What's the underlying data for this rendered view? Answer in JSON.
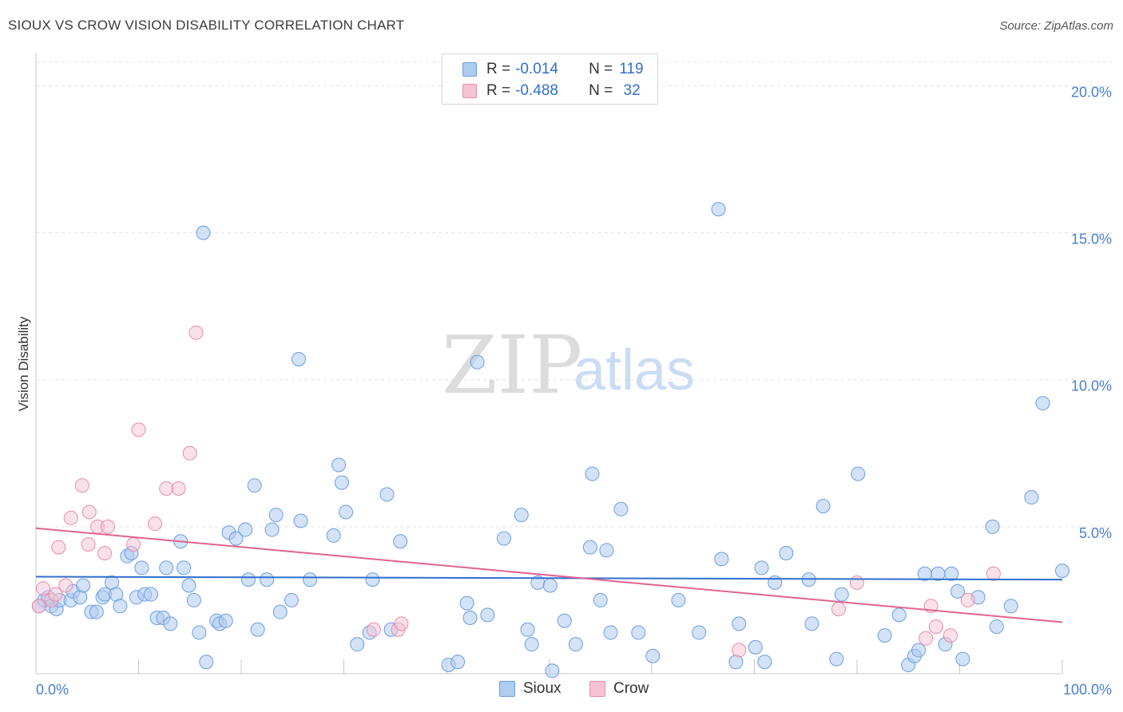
{
  "title": "SIOUX VS CROW VISION DISABILITY CORRELATION CHART",
  "source": "Source: ZipAtlas.com",
  "watermark": {
    "zip": "ZIP",
    "atlas": "atlas"
  },
  "legend": {
    "rows": [
      {
        "r_label": "R =",
        "r_value": "-0.014",
        "n_label": "N =",
        "n_value": "119"
      },
      {
        "r_label": "R =",
        "r_value": "-0.488",
        "n_label": "N =",
        "n_value": " 32"
      }
    ]
  },
  "bottom_legend": {
    "sioux": "Sioux",
    "crow": "Crow"
  },
  "colors": {
    "sioux_fill": "#aecbf0",
    "sioux_stroke": "#6a9ee0",
    "sioux_line": "#2f6fce",
    "crow_fill": "#f6c3d4",
    "crow_stroke": "#e98aab",
    "crow_line": "#e3628f",
    "grid": "#e3e3e3",
    "tick_text": "#4a7fd1"
  },
  "chart_data": {
    "type": "scatter",
    "title": "SIOUX VS CROW VISION DISABILITY CORRELATION CHART",
    "xlabel": "",
    "ylabel": "Vision Disability",
    "xlim": [
      0,
      100
    ],
    "ylim": [
      0,
      20.8
    ],
    "x_tick_labels": [
      "0.0%",
      "100.0%"
    ],
    "y_ticks": [
      5,
      10,
      15,
      20
    ],
    "y_tick_labels": [
      "5.0%",
      "10.0%",
      "15.0%",
      "20.0%"
    ],
    "grid": "horizontal dashed",
    "series": [
      {
        "name": "Sioux",
        "trend": {
          "y_at_x0": 3.3,
          "y_at_x100": 3.2
        },
        "points": [
          [
            0.3,
            2.3
          ],
          [
            0.8,
            2.5
          ],
          [
            1.2,
            2.6
          ],
          [
            1.5,
            2.3
          ],
          [
            2.0,
            2.2
          ],
          [
            2.3,
            2.5
          ],
          [
            3.4,
            2.5
          ],
          [
            3.6,
            2.8
          ],
          [
            4.3,
            2.6
          ],
          [
            4.6,
            3.0
          ],
          [
            5.4,
            2.1
          ],
          [
            5.9,
            2.1
          ],
          [
            6.5,
            2.6
          ],
          [
            6.7,
            2.7
          ],
          [
            7.4,
            3.1
          ],
          [
            7.8,
            2.7
          ],
          [
            8.2,
            2.3
          ],
          [
            8.9,
            4.0
          ],
          [
            9.3,
            4.1
          ],
          [
            9.8,
            2.6
          ],
          [
            10.3,
            3.6
          ],
          [
            10.6,
            2.7
          ],
          [
            11.2,
            2.7
          ],
          [
            11.8,
            1.9
          ],
          [
            12.4,
            1.9
          ],
          [
            12.7,
            3.6
          ],
          [
            13.1,
            1.7
          ],
          [
            14.1,
            4.5
          ],
          [
            14.4,
            3.6
          ],
          [
            14.9,
            3.0
          ],
          [
            15.4,
            2.5
          ],
          [
            15.9,
            1.4
          ],
          [
            16.3,
            15.0
          ],
          [
            16.6,
            0.4
          ],
          [
            17.6,
            1.8
          ],
          [
            17.9,
            1.7
          ],
          [
            18.5,
            1.8
          ],
          [
            18.8,
            4.8
          ],
          [
            19.5,
            4.6
          ],
          [
            20.4,
            4.9
          ],
          [
            20.7,
            3.2
          ],
          [
            21.3,
            6.4
          ],
          [
            21.6,
            1.5
          ],
          [
            22.5,
            3.2
          ],
          [
            23.0,
            4.9
          ],
          [
            23.4,
            5.4
          ],
          [
            23.8,
            2.1
          ],
          [
            24.9,
            2.5
          ],
          [
            25.6,
            10.7
          ],
          [
            25.8,
            5.2
          ],
          [
            26.7,
            3.2
          ],
          [
            29.0,
            4.7
          ],
          [
            29.5,
            7.1
          ],
          [
            29.8,
            6.5
          ],
          [
            30.2,
            5.5
          ],
          [
            31.3,
            1.0
          ],
          [
            32.5,
            1.4
          ],
          [
            32.8,
            3.2
          ],
          [
            34.2,
            6.1
          ],
          [
            34.6,
            1.5
          ],
          [
            35.5,
            4.5
          ],
          [
            40.2,
            0.3
          ],
          [
            41.1,
            0.4
          ],
          [
            42.0,
            2.4
          ],
          [
            42.3,
            1.9
          ],
          [
            43.0,
            10.6
          ],
          [
            44.0,
            2.0
          ],
          [
            45.6,
            4.6
          ],
          [
            47.3,
            5.4
          ],
          [
            47.9,
            1.5
          ],
          [
            48.3,
            1.0
          ],
          [
            48.9,
            3.1
          ],
          [
            50.1,
            3.0
          ],
          [
            50.3,
            0.1
          ],
          [
            51.5,
            1.8
          ],
          [
            52.6,
            1.0
          ],
          [
            54.0,
            4.3
          ],
          [
            54.2,
            6.8
          ],
          [
            55.0,
            2.5
          ],
          [
            55.6,
            4.2
          ],
          [
            56.0,
            1.4
          ],
          [
            57.0,
            5.6
          ],
          [
            58.7,
            1.4
          ],
          [
            60.1,
            0.6
          ],
          [
            62.6,
            2.5
          ],
          [
            64.6,
            1.4
          ],
          [
            66.5,
            15.8
          ],
          [
            66.8,
            3.9
          ],
          [
            68.2,
            0.4
          ],
          [
            68.5,
            1.7
          ],
          [
            70.1,
            0.9
          ],
          [
            70.7,
            3.6
          ],
          [
            71.0,
            0.4
          ],
          [
            72.0,
            3.1
          ],
          [
            73.1,
            4.1
          ],
          [
            75.3,
            3.2
          ],
          [
            75.6,
            1.7
          ],
          [
            76.7,
            5.7
          ],
          [
            78.0,
            0.5
          ],
          [
            78.5,
            2.7
          ],
          [
            80.1,
            6.8
          ],
          [
            82.7,
            1.3
          ],
          [
            84.1,
            2.0
          ],
          [
            85.0,
            0.3
          ],
          [
            85.6,
            0.6
          ],
          [
            86.0,
            0.8
          ],
          [
            86.6,
            3.4
          ],
          [
            87.9,
            3.4
          ],
          [
            88.6,
            1.0
          ],
          [
            89.2,
            3.4
          ],
          [
            89.8,
            2.8
          ],
          [
            90.3,
            0.5
          ],
          [
            91.8,
            2.6
          ],
          [
            93.2,
            5.0
          ],
          [
            93.6,
            1.6
          ],
          [
            95.0,
            2.3
          ],
          [
            97.0,
            6.0
          ],
          [
            98.1,
            9.2
          ],
          [
            100.0,
            3.5
          ]
        ]
      },
      {
        "name": "Crow",
        "trend": {
          "y_at_x0": 4.95,
          "y_at_x100": 1.75
        },
        "points": [
          [
            0.3,
            2.3
          ],
          [
            0.7,
            2.9
          ],
          [
            1.5,
            2.5
          ],
          [
            1.9,
            2.7
          ],
          [
            2.2,
            4.3
          ],
          [
            2.9,
            3.0
          ],
          [
            3.4,
            5.3
          ],
          [
            4.5,
            6.4
          ],
          [
            5.1,
            4.4
          ],
          [
            5.2,
            5.5
          ],
          [
            6.0,
            5.0
          ],
          [
            6.7,
            4.1
          ],
          [
            7.0,
            5.0
          ],
          [
            9.5,
            4.4
          ],
          [
            10.0,
            8.3
          ],
          [
            11.6,
            5.1
          ],
          [
            12.7,
            6.3
          ],
          [
            13.9,
            6.3
          ],
          [
            15.0,
            7.5
          ],
          [
            15.6,
            11.6
          ],
          [
            32.9,
            1.5
          ],
          [
            35.3,
            1.5
          ],
          [
            35.6,
            1.7
          ],
          [
            68.5,
            0.8
          ],
          [
            78.2,
            2.2
          ],
          [
            80.0,
            3.1
          ],
          [
            86.7,
            1.2
          ],
          [
            87.2,
            2.3
          ],
          [
            87.7,
            1.6
          ],
          [
            89.1,
            1.3
          ],
          [
            90.8,
            2.5
          ],
          [
            93.3,
            3.4
          ]
        ]
      }
    ]
  }
}
